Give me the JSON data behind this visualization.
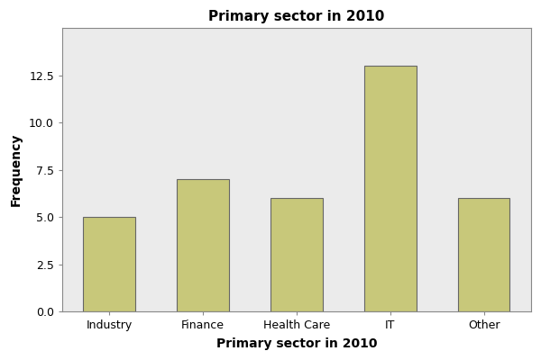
{
  "categories": [
    "Industry",
    "Finance",
    "Health Care",
    "IT",
    "Other"
  ],
  "values": [
    5,
    7,
    6,
    13,
    6
  ],
  "bar_color": "#C8C87A",
  "bar_edgecolor": "#666666",
  "title": "Primary sector in 2010",
  "xlabel": "Primary sector in 2010",
  "ylabel": "Frequency",
  "ylim": [
    0,
    15
  ],
  "yticks": [
    0.0,
    2.5,
    5.0,
    7.5,
    10.0,
    12.5
  ],
  "plot_background_color": "#EBEBEB",
  "figure_background_color": "#FFFFFF",
  "title_fontsize": 11,
  "axis_label_fontsize": 10,
  "tick_fontsize": 9,
  "bar_width": 0.55
}
